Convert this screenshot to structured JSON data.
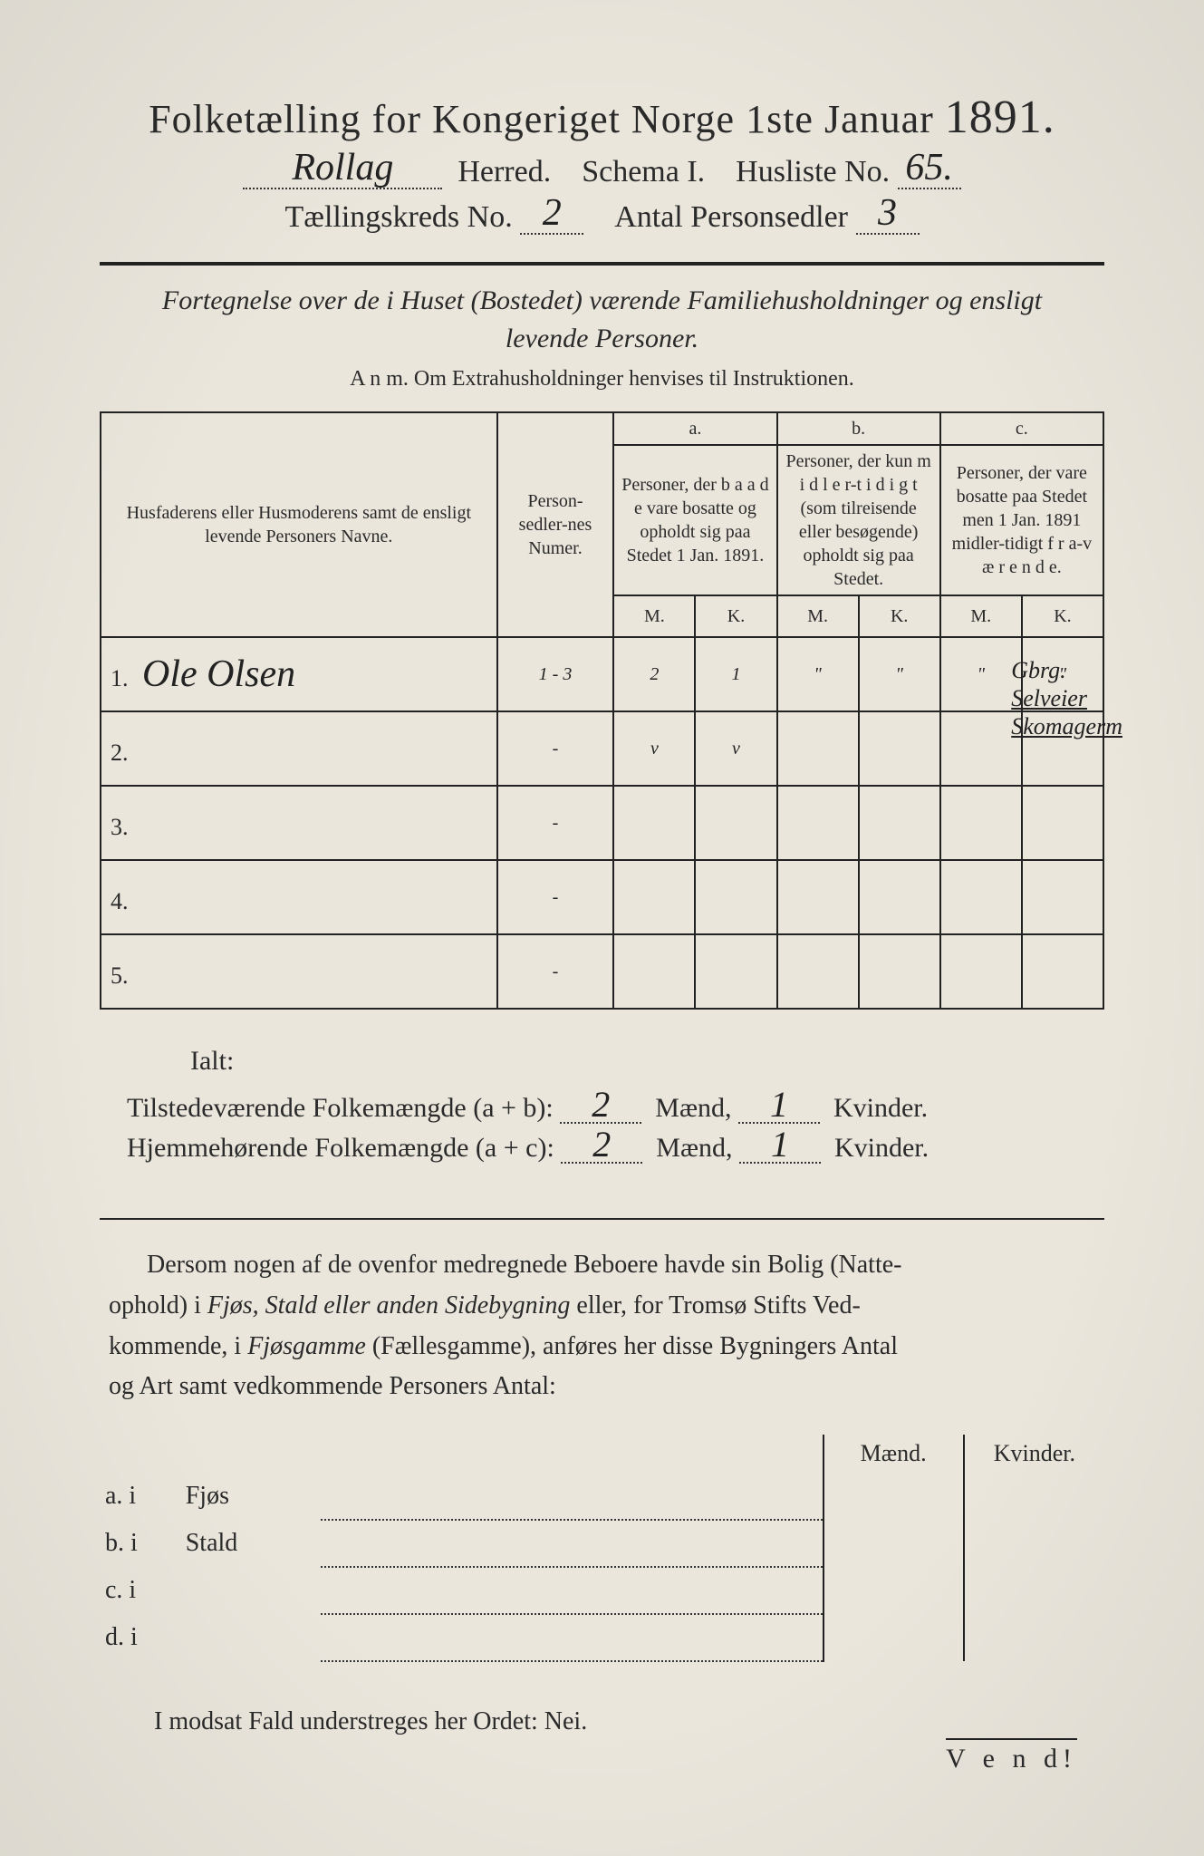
{
  "colors": {
    "paper": "#eae6dc",
    "ink": "#2a2a2a",
    "handwriting": "#222222",
    "border": "#222222"
  },
  "typography": {
    "title_pt": 44,
    "year_pt": 52,
    "header_row_pt": 34,
    "subtitle_pt": 30,
    "anm_pt": 24,
    "table_header_pt": 20,
    "data_cell_pt": 30,
    "body_pt": 28
  },
  "header": {
    "title_prefix": "Folketælling for Kongeriget Norge 1ste Januar",
    "year": "1891.",
    "herred_label": "Herred.",
    "schema_label": "Schema I.",
    "husliste_label": "Husliste No.",
    "kreds_label": "Tællingskreds No.",
    "antal_label": "Antal Personsedler",
    "herred_value": "Rollag",
    "husliste_value": "65.",
    "kreds_value": "2",
    "antal_value": "3"
  },
  "subtitle_line1": "Fortegnelse over de i Huset (Bostedet) værende Familiehusholdninger og ensligt",
  "subtitle_line2": "levende Personer.",
  "anm": "A n m.  Om Extrahusholdninger henvises til Instruktionen.",
  "table": {
    "col_name": "Husfaderens eller Husmoderens samt de ensligt levende Personers Navne.",
    "col_num": "Person-sedler-nes Numer.",
    "col_a_head": "a.",
    "col_a": "Personer, der b a a d e vare bosatte og opholdt sig paa Stedet 1 Jan. 1891.",
    "col_b_head": "b.",
    "col_b": "Personer, der kun m i d l e r-t i d i g t (som tilreisende eller besøgende) opholdt sig paa Stedet.",
    "col_c_head": "c.",
    "col_c": "Personer, der vare bosatte paa Stedet men 1 Jan. 1891 midler-tidigt f r a-v æ r e n d e.",
    "mk_m": "M.",
    "mk_k": "K.",
    "rows": [
      {
        "n": "1.",
        "name": "Ole Olsen",
        "num": "1 - 3",
        "aM": "2",
        "aK": "1",
        "bM": "\"",
        "bK": "\"",
        "cM": "\"",
        "cK": "\""
      },
      {
        "n": "2.",
        "name": "",
        "num": "-",
        "aM": "v",
        "aK": "v",
        "bM": "",
        "bK": "",
        "cM": "",
        "cK": ""
      },
      {
        "n": "3.",
        "name": "",
        "num": "-",
        "aM": "",
        "aK": "",
        "bM": "",
        "bK": "",
        "cM": "",
        "cK": ""
      },
      {
        "n": "4.",
        "name": "",
        "num": "-",
        "aM": "",
        "aK": "",
        "bM": "",
        "bK": "",
        "cM": "",
        "cK": ""
      },
      {
        "n": "5.",
        "name": "",
        "num": "-",
        "aM": "",
        "aK": "",
        "bM": "",
        "bK": "",
        "cM": "",
        "cK": ""
      }
    ],
    "side_note_line1": "Gbrg.",
    "side_note_line2": "Selveier",
    "side_note_line3": "Skomagerm"
  },
  "totals": {
    "ialt": "Ialt:",
    "tilstede_label": "Tilstedeværende Folkemængde (a + b):",
    "hjemme_label": "Hjemmehørende Folkemængde (a + c):",
    "maend": "Mænd,",
    "kvinder": "Kvinder.",
    "tilstede_m": "2",
    "tilstede_k": "1",
    "hjemme_m": "2",
    "hjemme_k": "1"
  },
  "para": {
    "l1": "Dersom nogen af de ovenfor medregnede Beboere havde sin Bolig (Natte-",
    "l2_prefix": "ophold) i ",
    "l2_italic": "Fjøs, Stald eller anden Sidebygning",
    "l2_mid": " eller, for Tromsø Stifts Ved-",
    "l3_prefix": "kommende, i ",
    "l3_italic": "Fjøsgamme",
    "l3_mid": " (Fællesgamme), anføres her disse Bygningers Antal",
    "l4": "og Art samt vedkommende Personers Antal:"
  },
  "bldg": {
    "head_m": "Mænd.",
    "head_k": "Kvinder.",
    "rows": [
      {
        "lab": "a.  i",
        "type": "Fjøs"
      },
      {
        "lab": "b.  i",
        "type": "Stald"
      },
      {
        "lab": "c.  i",
        "type": ""
      },
      {
        "lab": "d.  i",
        "type": ""
      }
    ]
  },
  "nei": "I modsat Fald understreges her Ordet: Nei.",
  "vend": "V e n d!"
}
